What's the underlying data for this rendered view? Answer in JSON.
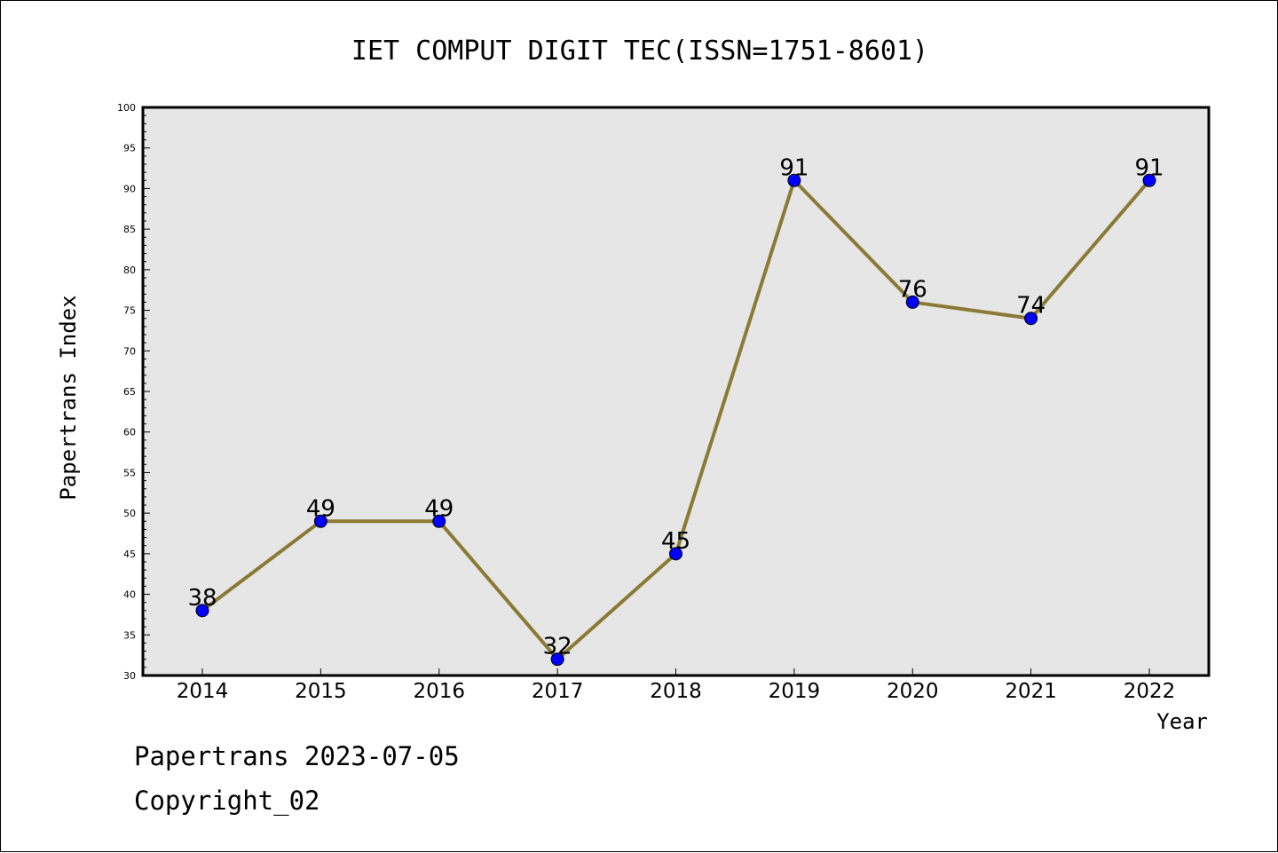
{
  "chart_data": {
    "type": "line",
    "title": "IET COMPUT DIGIT TEC(ISSN=1751-8601)",
    "xlabel": "Year",
    "ylabel": "Papertrans Index",
    "categories": [
      "2014",
      "2015",
      "2016",
      "2017",
      "2018",
      "2019",
      "2020",
      "2021",
      "2022"
    ],
    "values": [
      38,
      49,
      49,
      32,
      45,
      91,
      76,
      74,
      91
    ],
    "data_labels": [
      "38",
      "49",
      "49",
      "32",
      "45",
      "91",
      "76",
      "74",
      "91"
    ],
    "ylim": [
      30,
      100
    ],
    "yticks": [
      "30",
      "35",
      "40",
      "45",
      "50",
      "55",
      "60",
      "65",
      "70",
      "75",
      "80",
      "85",
      "90",
      "95",
      "100"
    ],
    "grid": false,
    "colors": {
      "plot_background": "#e6e6e6",
      "line": "#8b7a35",
      "marker": "#0000ff"
    }
  },
  "footer": {
    "line1": "Papertrans 2023-07-05",
    "line2": "Copyright_02"
  }
}
